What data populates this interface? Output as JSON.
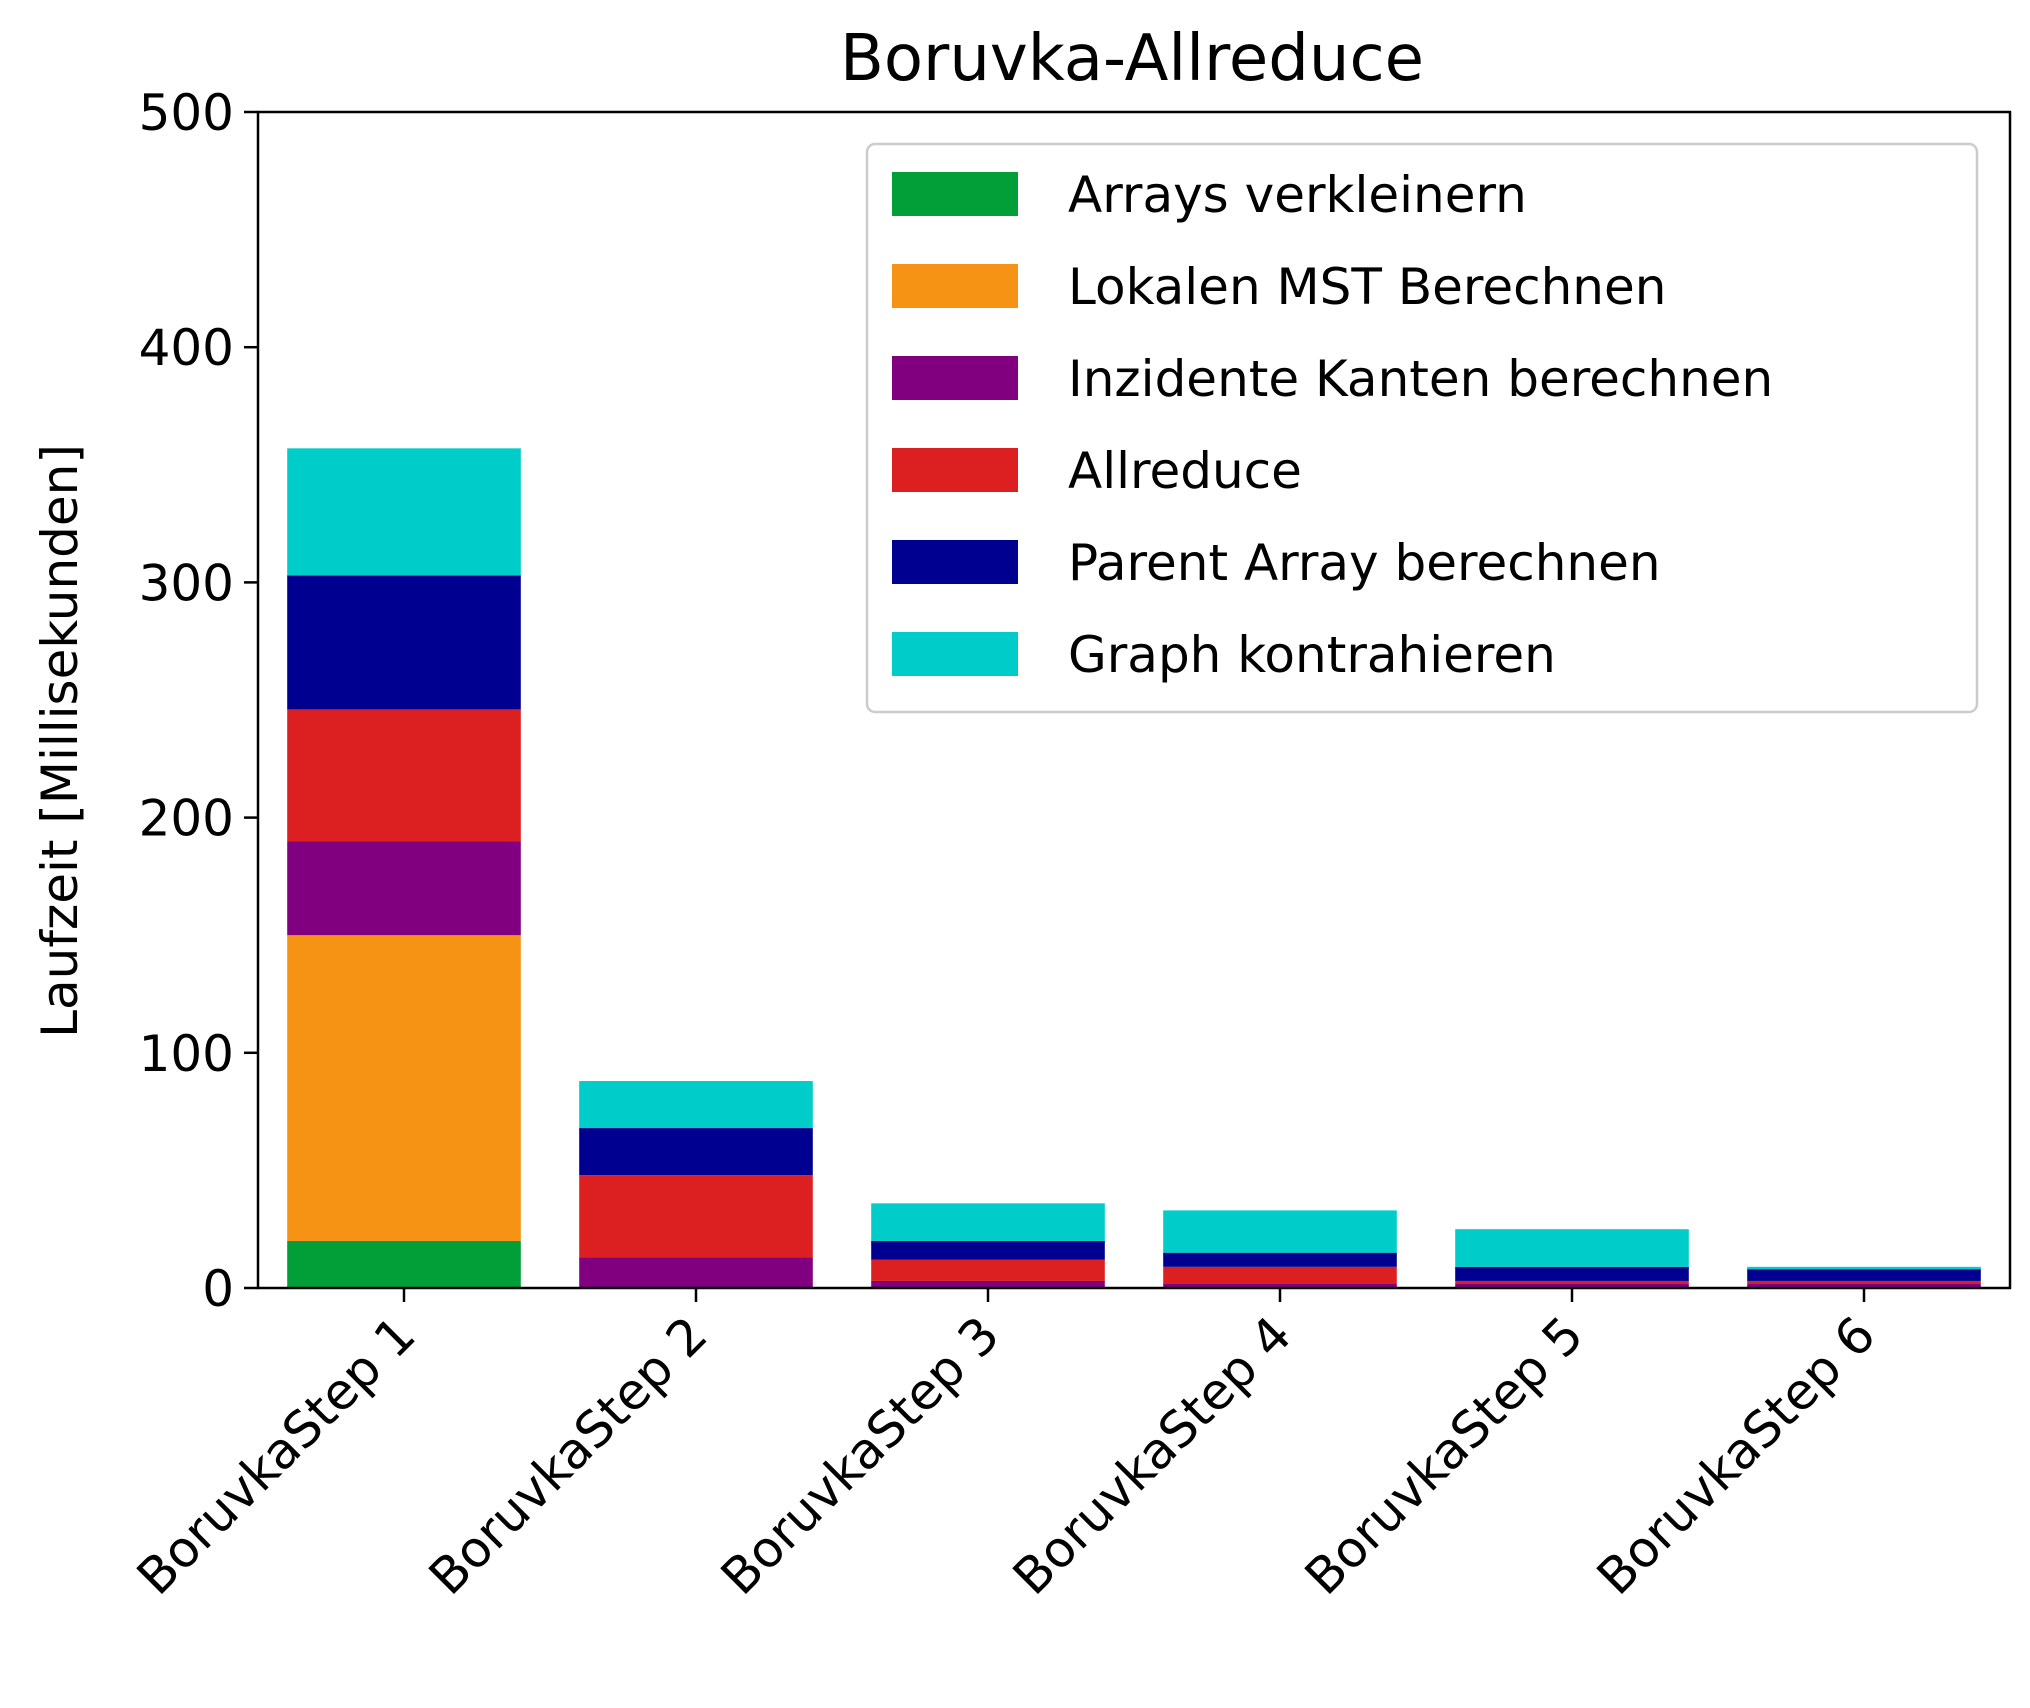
{
  "chart_data": {
    "type": "bar",
    "stacked": true,
    "title": "Boruvka-Allreduce",
    "xlabel": "",
    "ylabel": "Laufzeit [Millisekunden]",
    "ylim": [
      0,
      500
    ],
    "yticks": [
      "0",
      "100",
      "200",
      "300",
      "400",
      "500"
    ],
    "grid": false,
    "legend_position": "top-right",
    "categories": [
      "BoruvkaStep 1",
      "BoruvkaStep 2",
      "BoruvkaStep 3",
      "BoruvkaStep 4",
      "BoruvkaStep 5",
      "BoruvkaStep 6"
    ],
    "series": [
      {
        "name": "Arrays verkleinern",
        "color": "#029e37",
        "values": [
          20,
          0,
          0,
          0,
          0,
          0
        ]
      },
      {
        "name": "Lokalen MST Berechnen",
        "color": "#f69214",
        "values": [
          130,
          0,
          0,
          0,
          0,
          0
        ]
      },
      {
        "name": "Inzidente Kanten berechnen",
        "color": "#800080",
        "values": [
          40,
          13,
          3,
          2,
          2,
          2
        ]
      },
      {
        "name": "Allreduce",
        "color": "#dc1f21",
        "values": [
          56,
          35,
          9,
          7,
          1,
          1
        ]
      },
      {
        "name": "Parent Array berechnen",
        "color": "#000090",
        "values": [
          57,
          20,
          8,
          6,
          6,
          5
        ]
      },
      {
        "name": "Graph kontrahieren",
        "color": "#00cdca",
        "values": [
          54,
          20,
          16,
          18,
          16,
          1
        ]
      }
    ]
  }
}
